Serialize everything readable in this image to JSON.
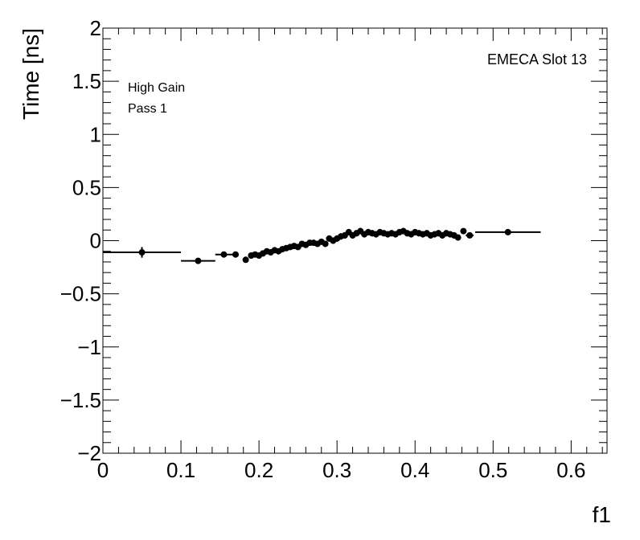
{
  "chart_data": {
    "type": "scatter",
    "title": "",
    "xlabel": "f1",
    "ylabel": "Time [ns]",
    "xlim": [
      0,
      0.646
    ],
    "ylim": [
      -2,
      2
    ],
    "x_major_ticks": [
      0,
      0.1,
      0.2,
      0.3,
      0.4,
      0.5,
      0.6
    ],
    "x_tick_labels": [
      "0",
      "0.1",
      "0.2",
      "0.3",
      "0.4",
      "0.5",
      "0.6"
    ],
    "y_major_ticks": [
      -2,
      -1.5,
      -1,
      -0.5,
      0,
      0.5,
      1,
      1.5,
      2
    ],
    "y_tick_labels": [
      "−2",
      "−1.5",
      "−1",
      "−0.5",
      "0",
      "0.5",
      "1",
      "1.5",
      "2"
    ],
    "grid": false,
    "marker_color": "#000000",
    "annotations": {
      "gain": "High Gain",
      "pass": "Pass 1",
      "slot": "EMECA Slot 13"
    },
    "points": [
      {
        "x": 0.05,
        "y": -0.11,
        "xerr": 0.05,
        "yerr": 0.05
      },
      {
        "x": 0.122,
        "y": -0.19,
        "xerr": 0.022,
        "yerr": 0.01
      },
      {
        "x": 0.155,
        "y": -0.13,
        "xerr": 0.011,
        "yerr": 0.01
      },
      {
        "x": 0.17,
        "y": -0.13,
        "xerr": 0.004,
        "yerr": 0.01
      },
      {
        "x": 0.183,
        "y": -0.18,
        "xerr": 0.003,
        "yerr": 0.02
      },
      {
        "x": 0.19,
        "y": -0.14,
        "xerr": 0.003,
        "yerr": 0.02
      },
      {
        "x": 0.195,
        "y": -0.13,
        "xerr": 0.003,
        "yerr": 0.02
      },
      {
        "x": 0.2,
        "y": -0.14,
        "xerr": 0.003,
        "yerr": 0.02
      },
      {
        "x": 0.205,
        "y": -0.12,
        "xerr": 0.003,
        "yerr": 0.02
      },
      {
        "x": 0.21,
        "y": -0.1,
        "xerr": 0.003,
        "yerr": 0.02
      },
      {
        "x": 0.215,
        "y": -0.11,
        "xerr": 0.003,
        "yerr": 0.02
      },
      {
        "x": 0.22,
        "y": -0.09,
        "xerr": 0.003,
        "yerr": 0.02
      },
      {
        "x": 0.225,
        "y": -0.1,
        "xerr": 0.003,
        "yerr": 0.02
      },
      {
        "x": 0.23,
        "y": -0.08,
        "xerr": 0.003,
        "yerr": 0.02
      },
      {
        "x": 0.235,
        "y": -0.07,
        "xerr": 0.003,
        "yerr": 0.02
      },
      {
        "x": 0.24,
        "y": -0.06,
        "xerr": 0.003,
        "yerr": 0.02
      },
      {
        "x": 0.245,
        "y": -0.05,
        "xerr": 0.003,
        "yerr": 0.02
      },
      {
        "x": 0.25,
        "y": -0.06,
        "xerr": 0.003,
        "yerr": 0.02
      },
      {
        "x": 0.255,
        "y": -0.03,
        "xerr": 0.003,
        "yerr": 0.02
      },
      {
        "x": 0.26,
        "y": -0.04,
        "xerr": 0.003,
        "yerr": 0.02
      },
      {
        "x": 0.265,
        "y": -0.02,
        "xerr": 0.003,
        "yerr": 0.02
      },
      {
        "x": 0.27,
        "y": -0.02,
        "xerr": 0.003,
        "yerr": 0.02
      },
      {
        "x": 0.275,
        "y": -0.03,
        "xerr": 0.003,
        "yerr": 0.02
      },
      {
        "x": 0.28,
        "y": -0.01,
        "xerr": 0.003,
        "yerr": 0.02
      },
      {
        "x": 0.285,
        "y": -0.03,
        "xerr": 0.003,
        "yerr": 0.02
      },
      {
        "x": 0.29,
        "y": 0.02,
        "xerr": 0.003,
        "yerr": 0.03
      },
      {
        "x": 0.295,
        "y": 0.0,
        "xerr": 0.003,
        "yerr": 0.03
      },
      {
        "x": 0.3,
        "y": 0.02,
        "xerr": 0.003,
        "yerr": 0.03
      },
      {
        "x": 0.305,
        "y": 0.04,
        "xerr": 0.003,
        "yerr": 0.03
      },
      {
        "x": 0.31,
        "y": 0.05,
        "xerr": 0.003,
        "yerr": 0.03
      },
      {
        "x": 0.315,
        "y": 0.08,
        "xerr": 0.003,
        "yerr": 0.03
      },
      {
        "x": 0.32,
        "y": 0.05,
        "xerr": 0.003,
        "yerr": 0.03
      },
      {
        "x": 0.325,
        "y": 0.07,
        "xerr": 0.003,
        "yerr": 0.03
      },
      {
        "x": 0.33,
        "y": 0.09,
        "xerr": 0.003,
        "yerr": 0.03
      },
      {
        "x": 0.335,
        "y": 0.06,
        "xerr": 0.003,
        "yerr": 0.03
      },
      {
        "x": 0.34,
        "y": 0.08,
        "xerr": 0.003,
        "yerr": 0.03
      },
      {
        "x": 0.345,
        "y": 0.07,
        "xerr": 0.003,
        "yerr": 0.03
      },
      {
        "x": 0.35,
        "y": 0.06,
        "xerr": 0.003,
        "yerr": 0.03
      },
      {
        "x": 0.355,
        "y": 0.08,
        "xerr": 0.003,
        "yerr": 0.03
      },
      {
        "x": 0.36,
        "y": 0.07,
        "xerr": 0.003,
        "yerr": 0.03
      },
      {
        "x": 0.365,
        "y": 0.06,
        "xerr": 0.003,
        "yerr": 0.03
      },
      {
        "x": 0.37,
        "y": 0.07,
        "xerr": 0.003,
        "yerr": 0.03
      },
      {
        "x": 0.375,
        "y": 0.06,
        "xerr": 0.003,
        "yerr": 0.03
      },
      {
        "x": 0.38,
        "y": 0.08,
        "xerr": 0.003,
        "yerr": 0.03
      },
      {
        "x": 0.385,
        "y": 0.09,
        "xerr": 0.003,
        "yerr": 0.03
      },
      {
        "x": 0.39,
        "y": 0.07,
        "xerr": 0.003,
        "yerr": 0.03
      },
      {
        "x": 0.395,
        "y": 0.06,
        "xerr": 0.003,
        "yerr": 0.03
      },
      {
        "x": 0.4,
        "y": 0.08,
        "xerr": 0.003,
        "yerr": 0.03
      },
      {
        "x": 0.405,
        "y": 0.07,
        "xerr": 0.003,
        "yerr": 0.03
      },
      {
        "x": 0.41,
        "y": 0.06,
        "xerr": 0.003,
        "yerr": 0.03
      },
      {
        "x": 0.415,
        "y": 0.07,
        "xerr": 0.003,
        "yerr": 0.03
      },
      {
        "x": 0.42,
        "y": 0.05,
        "xerr": 0.003,
        "yerr": 0.03
      },
      {
        "x": 0.425,
        "y": 0.06,
        "xerr": 0.003,
        "yerr": 0.03
      },
      {
        "x": 0.43,
        "y": 0.07,
        "xerr": 0.003,
        "yerr": 0.03
      },
      {
        "x": 0.435,
        "y": 0.05,
        "xerr": 0.003,
        "yerr": 0.03
      },
      {
        "x": 0.44,
        "y": 0.07,
        "xerr": 0.003,
        "yerr": 0.03
      },
      {
        "x": 0.445,
        "y": 0.06,
        "xerr": 0.003,
        "yerr": 0.03
      },
      {
        "x": 0.45,
        "y": 0.05,
        "xerr": 0.003,
        "yerr": 0.03
      },
      {
        "x": 0.455,
        "y": 0.03,
        "xerr": 0.003,
        "yerr": 0.02
      },
      {
        "x": 0.462,
        "y": 0.09,
        "xerr": 0.003,
        "yerr": 0.02
      },
      {
        "x": 0.47,
        "y": 0.05,
        "xerr": 0.005,
        "yerr": 0.02
      },
      {
        "x": 0.519,
        "y": 0.08,
        "xerr": 0.042,
        "yerr": 0.01
      }
    ]
  }
}
